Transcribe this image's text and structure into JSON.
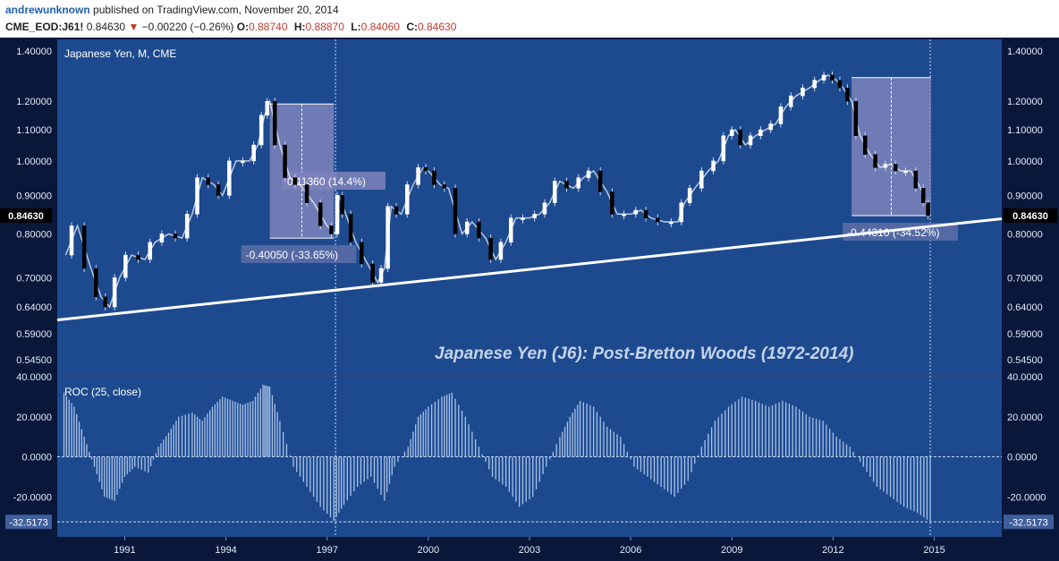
{
  "header": {
    "author": "andrewunknown",
    "published": "published on TradingView.com, November 20, 2014",
    "symbol": "CME_EOD:J61!",
    "last": "0.84630",
    "change_arrow": "▼",
    "change": "−0.00220 (−0.26%)",
    "o_label": "O:",
    "o_value": "0.88740",
    "h_label": "H:",
    "h_value": "0.88870",
    "l_label": "L:",
    "l_value": "0.84060",
    "c_label": "C:",
    "c_value": "0.84630"
  },
  "colors": {
    "background": "#1d4a8f",
    "frame": "#08173a",
    "candle_up": "#ffffff",
    "candle_down": "#000000",
    "trendline": "#ffffff",
    "highlight_box": "#8a8cc0",
    "roc_bars": "#a9c3e8"
  },
  "chart_data": [
    {
      "type": "line",
      "title": "Japanese Yen, M, CME",
      "annotation": "Japanese Yen (J6): Post-Bretton Woods (1972-2014)",
      "scale": "log",
      "ylim": [
        0.52,
        1.45
      ],
      "xlim": [
        1989.0,
        2017.0
      ],
      "y_ticks": [
        "1.40000",
        "1.20000",
        "1.10000",
        "1.00000",
        "0.90000",
        "0.80000",
        "0.70000",
        "0.64000",
        "0.59000",
        "0.54500"
      ],
      "y_tick_values": [
        1.4,
        1.2,
        1.1,
        1.0,
        0.9,
        0.8,
        0.7,
        0.64,
        0.59,
        0.545
      ],
      "x_ticks": [
        "1991",
        "1994",
        "1997",
        "2000",
        "2003",
        "2006",
        "2009",
        "2012",
        "2015"
      ],
      "x_tick_values": [
        1991,
        1994,
        1997,
        2000,
        2003,
        2006,
        2009,
        2012,
        2015
      ],
      "last_price_label": "0.84630",
      "last_price": 0.8463,
      "series": [
        {
          "x": [
            1989.25,
            1989.6,
            1990.0,
            1990.3,
            1990.55,
            1990.85,
            1991.2,
            1991.6,
            1991.9,
            1992.3,
            1992.7,
            1993.0,
            1993.3,
            1993.65,
            1993.9,
            1994.3,
            1994.7,
            1994.95,
            1995.15,
            1995.3,
            1995.6,
            1995.9,
            1996.2,
            1996.6,
            1997.0,
            1997.25,
            1997.35,
            1997.55,
            1997.85,
            1998.2,
            1998.5,
            1998.7,
            1998.9,
            1999.2,
            1999.55,
            1999.85,
            2000.0,
            2000.35,
            2000.6,
            2001.0,
            2001.3,
            2001.7,
            2002.0,
            2002.3,
            2002.6,
            2003.0,
            2003.3,
            2003.6,
            2003.9,
            2004.3,
            2004.6,
            2004.9,
            2005.3,
            2005.6,
            2006.0,
            2006.3,
            2006.6,
            2007.0,
            2007.4,
            2007.6,
            2007.9,
            2008.3,
            2008.6,
            2008.9,
            2009.1,
            2009.4,
            2009.7,
            2010.0,
            2010.3,
            2010.6,
            2010.9,
            2011.3,
            2011.6,
            2011.85,
            2012.1,
            2012.3,
            2012.55,
            2012.8,
            2013.1,
            2013.4,
            2013.7,
            2014.0,
            2014.3,
            2014.6,
            2014.75,
            2014.88
          ],
          "y": [
            0.75,
            0.82,
            0.72,
            0.66,
            0.64,
            0.7,
            0.75,
            0.74,
            0.78,
            0.8,
            0.79,
            0.85,
            0.95,
            0.93,
            0.9,
            1.0,
            1.0,
            1.05,
            1.15,
            1.2,
            1.05,
            0.95,
            0.93,
            0.88,
            0.82,
            0.8,
            0.9,
            0.85,
            0.78,
            0.73,
            0.69,
            0.72,
            0.87,
            0.85,
            0.93,
            0.98,
            0.97,
            0.93,
            0.92,
            0.8,
            0.83,
            0.79,
            0.74,
            0.78,
            0.84,
            0.84,
            0.85,
            0.88,
            0.94,
            0.92,
            0.95,
            0.97,
            0.91,
            0.85,
            0.85,
            0.86,
            0.84,
            0.83,
            0.83,
            0.88,
            0.92,
            0.97,
            1.0,
            1.08,
            1.1,
            1.05,
            1.08,
            1.1,
            1.12,
            1.18,
            1.22,
            1.25,
            1.28,
            1.3,
            1.28,
            1.25,
            1.2,
            1.08,
            1.02,
            0.98,
            0.99,
            0.97,
            0.97,
            0.92,
            0.88,
            0.846
          ]
        }
      ],
      "measures": [
        {
          "label": "-0.40050 (-33.65%)",
          "x0": 1995.3,
          "x1": 1997.2,
          "y_top": 1.19,
          "y_bottom": 0.79
        },
        {
          "label": "0.11360 (14.4%)",
          "x_at": 1997.3
        },
        {
          "label": "-0.44310 (-34.52%)",
          "x0": 2012.55,
          "x1": 2014.9,
          "y_top": 1.29,
          "y_bottom": 0.846
        }
      ],
      "trendline": {
        "x": [
          1989.0,
          2017.0
        ],
        "y": [
          0.615,
          0.838
        ]
      },
      "vertical_markers": [
        1997.25,
        2014.88
      ]
    },
    {
      "type": "bar",
      "title": "ROC (25, close)",
      "ylim": [
        -40,
        40
      ],
      "y_ticks": [
        "40.0000",
        "20.0000",
        "0.0000",
        "-20.0000"
      ],
      "y_tick_values": [
        40,
        20,
        0,
        -20
      ],
      "last_value_label": "-32.5173",
      "last_value": -32.5173,
      "x": [
        1989.2,
        1989.5,
        1989.8,
        1990.1,
        1990.4,
        1990.7,
        1991.0,
        1991.3,
        1991.7,
        1992.0,
        1992.3,
        1992.6,
        1993.0,
        1993.3,
        1993.6,
        1993.9,
        1994.2,
        1994.5,
        1994.8,
        1995.1,
        1995.3,
        1995.6,
        1996.0,
        1996.4,
        1996.8,
        1997.2,
        1997.5,
        1997.9,
        1998.3,
        1998.7,
        1999.0,
        1999.4,
        1999.7,
        2000.0,
        2000.4,
        2000.7,
        2001.1,
        2001.5,
        2001.9,
        2002.3,
        2002.7,
        2003.1,
        2003.5,
        2003.9,
        2004.2,
        2004.5,
        2004.9,
        2005.3,
        2005.7,
        2006.1,
        2006.5,
        2006.9,
        2007.3,
        2007.7,
        2008.1,
        2008.5,
        2008.9,
        2009.3,
        2009.7,
        2010.1,
        2010.5,
        2010.9,
        2011.3,
        2011.7,
        2012.1,
        2012.5,
        2012.9,
        2013.3,
        2013.7,
        2014.1,
        2014.5,
        2014.88
      ],
      "values": [
        32,
        25,
        10,
        -5,
        -20,
        -22,
        -10,
        -5,
        -8,
        5,
        12,
        20,
        22,
        18,
        25,
        30,
        28,
        26,
        28,
        36,
        35,
        18,
        -5,
        -15,
        -25,
        -32,
        -24,
        -15,
        -10,
        -22,
        -5,
        5,
        20,
        25,
        30,
        32,
        20,
        5,
        -10,
        -15,
        -25,
        -20,
        -5,
        10,
        20,
        28,
        25,
        15,
        10,
        -5,
        -10,
        -15,
        -20,
        -12,
        5,
        18,
        25,
        30,
        28,
        25,
        28,
        25,
        20,
        18,
        10,
        5,
        -5,
        -15,
        -20,
        -25,
        -28,
        -32.5
      ]
    }
  ]
}
